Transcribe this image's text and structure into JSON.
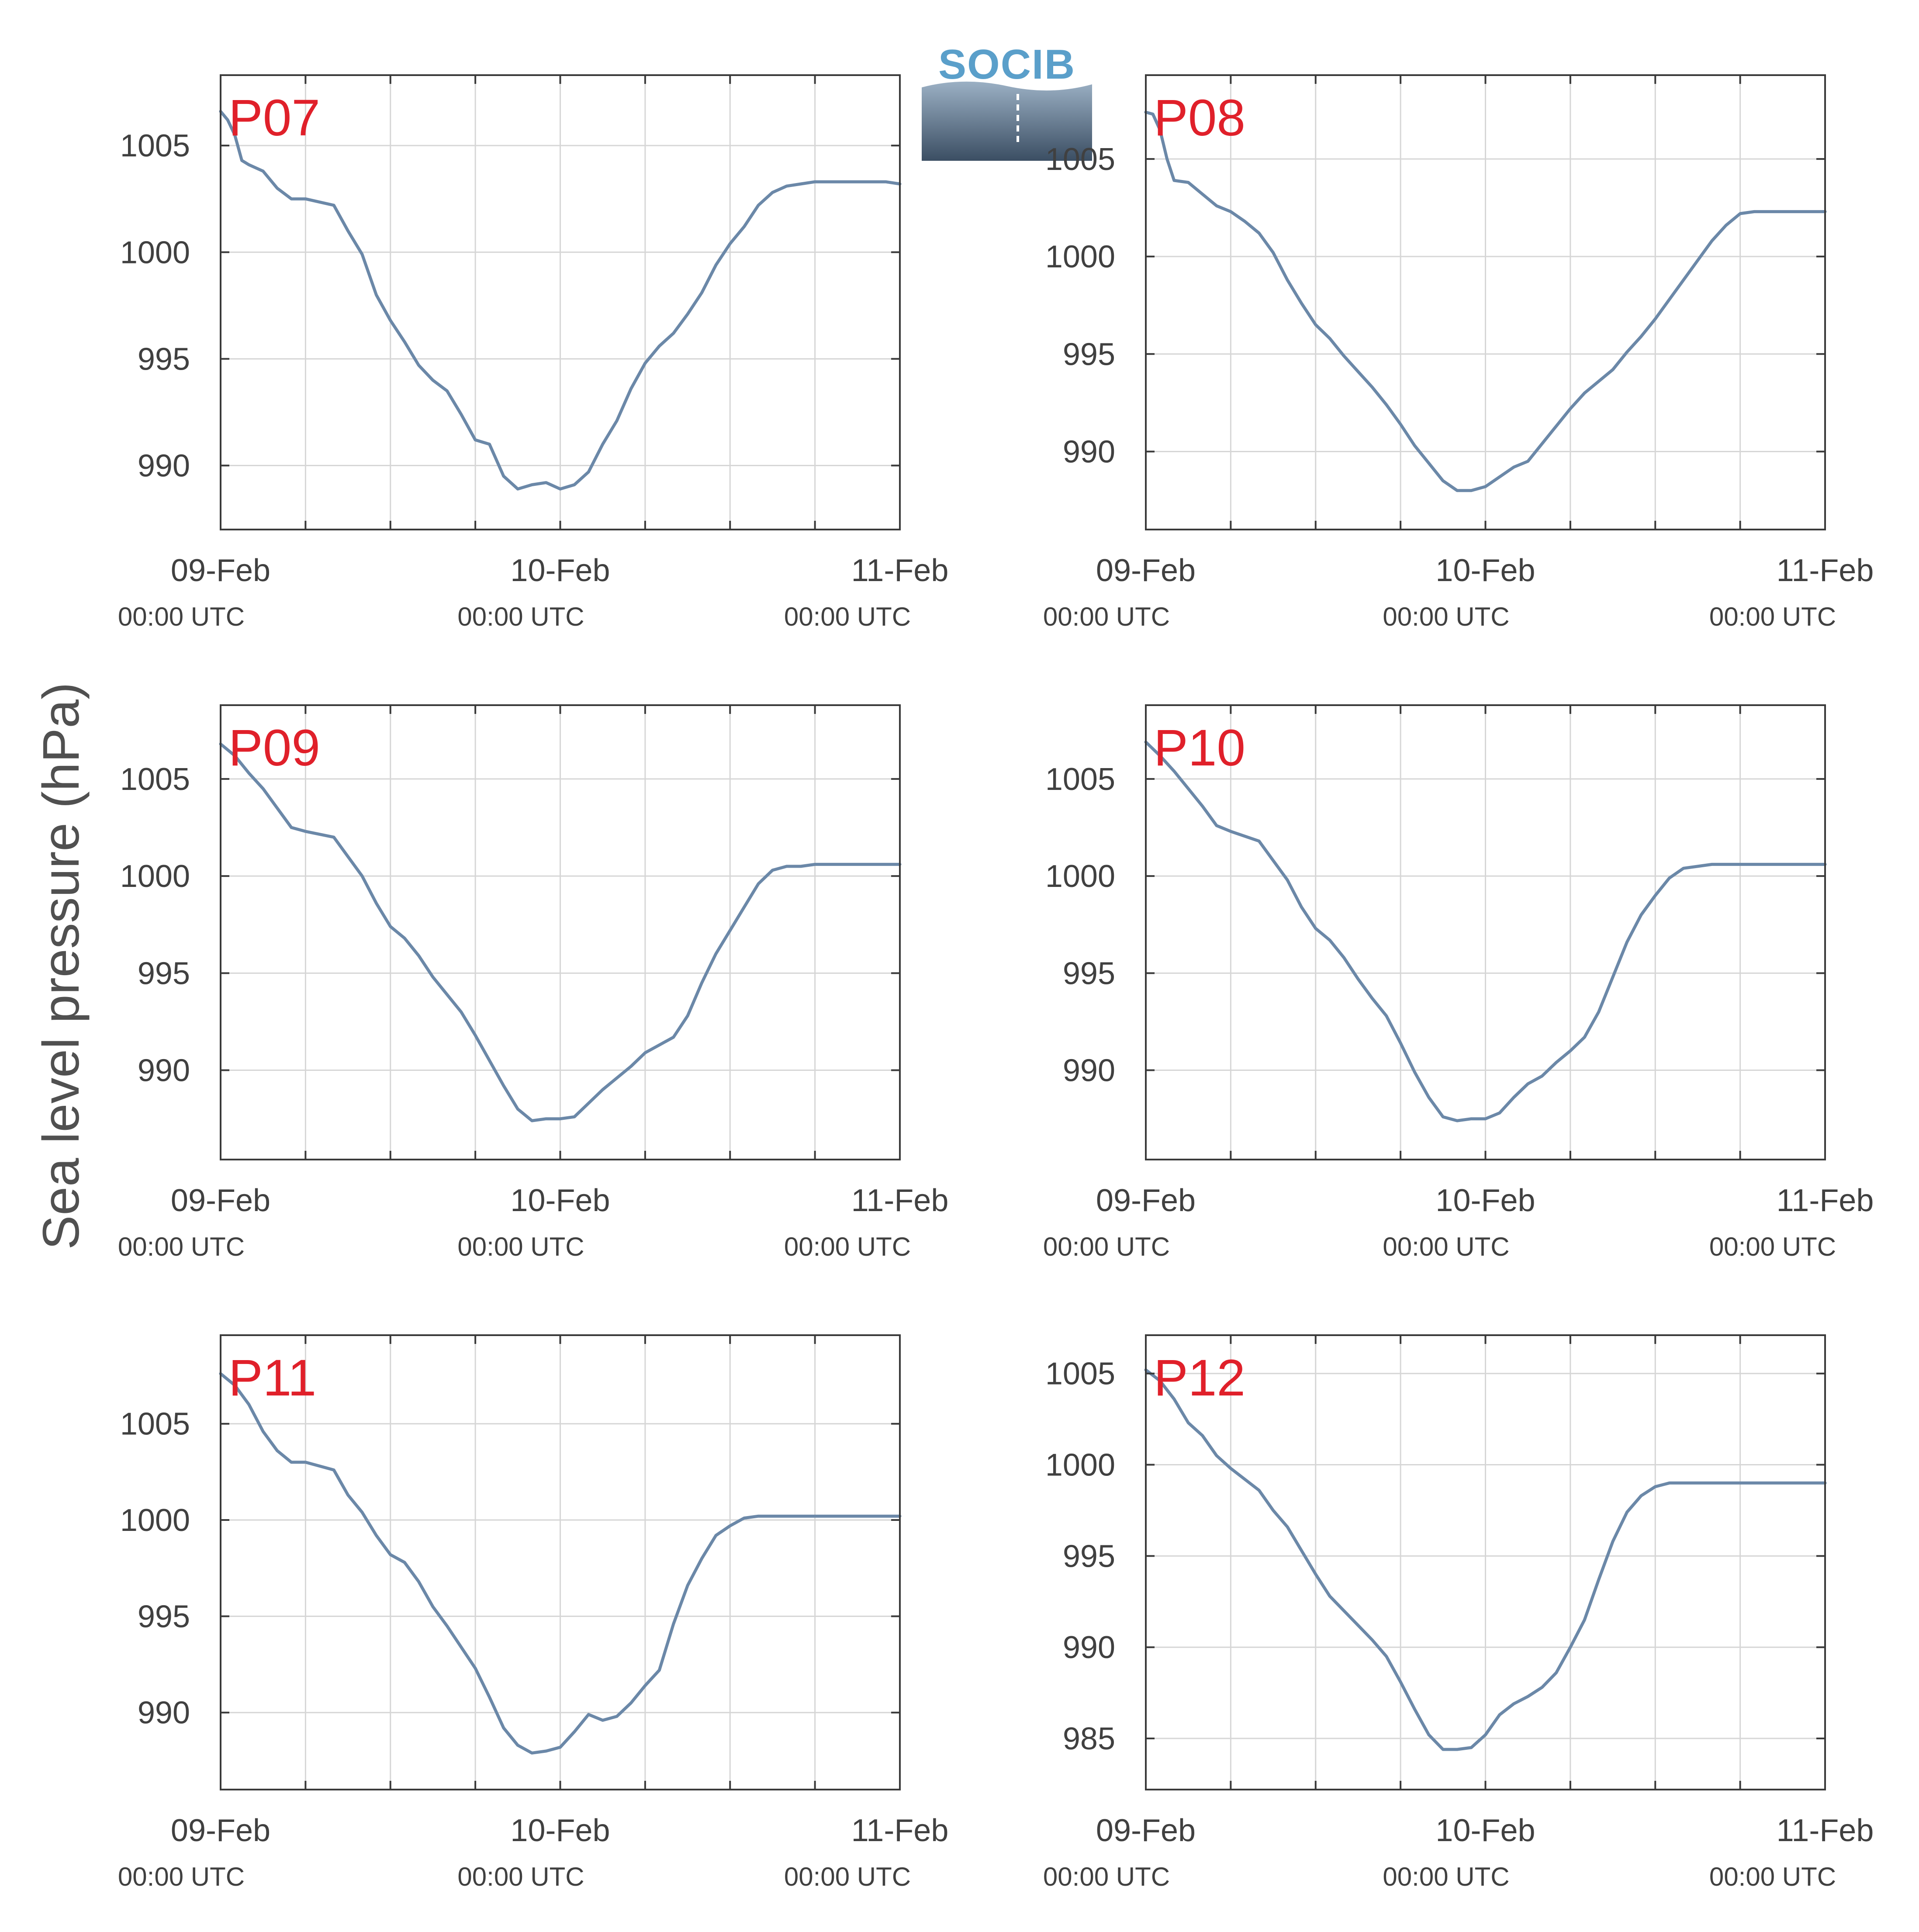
{
  "figure": {
    "ylabel": "Sea level pressure (hPa)",
    "logo_text": "SOCIB",
    "colors": {
      "line": "#6b88a8",
      "panel_label": "#e0202a",
      "logo_text": "#5a9fca",
      "grid": "#d6d6d6",
      "axis": "#3a3a3a"
    }
  },
  "chart_data": [
    {
      "type": "line",
      "panel_label": "P07",
      "xlim": [
        0,
        48
      ],
      "ylim": [
        987,
        1008.3
      ],
      "yticks": [
        990,
        995,
        1000,
        1005
      ],
      "xticks": [
        {
          "x": 0,
          "label": "09-Feb",
          "sublabel": "00:00 UTC"
        },
        {
          "x": 24,
          "label": "10-Feb",
          "sublabel": "00:00 UTC"
        },
        {
          "x": 48,
          "label": "11-Feb",
          "sublabel": "00:00 UTC"
        }
      ],
      "x": [
        0,
        0.5,
        1,
        1.5,
        2,
        3,
        4,
        5,
        6,
        8,
        9,
        10,
        11,
        12,
        13,
        14,
        15,
        16,
        17,
        18,
        19,
        20,
        21,
        22,
        23,
        24,
        25,
        26,
        27,
        28,
        29,
        30,
        31,
        32,
        33,
        34,
        35,
        36,
        37,
        38,
        39,
        40,
        41,
        42,
        43,
        44,
        45,
        46,
        47,
        48
      ],
      "y": [
        1006.6,
        1006.2,
        1005.5,
        1004.3,
        1004.1,
        1003.8,
        1003.0,
        1002.5,
        1002.5,
        1002.2,
        1001.0,
        999.9,
        998.0,
        996.8,
        995.8,
        994.7,
        994.0,
        993.5,
        992.4,
        991.2,
        991.0,
        989.5,
        988.9,
        989.1,
        989.2,
        988.9,
        989.1,
        989.7,
        991.0,
        992.1,
        993.6,
        994.8,
        995.6,
        996.2,
        997.1,
        998.1,
        999.4,
        1000.4,
        1001.2,
        1002.2,
        1002.8,
        1003.1,
        1003.2,
        1003.3,
        1003.3,
        1003.3,
        1003.3,
        1003.3,
        1003.3,
        1003.2
      ]
    },
    {
      "type": "line",
      "panel_label": "P08",
      "xlim": [
        0,
        48
      ],
      "ylim": [
        986,
        1009.3
      ],
      "yticks": [
        990,
        995,
        1000,
        1005
      ],
      "xticks": [
        {
          "x": 0,
          "label": "09-Feb",
          "sublabel": "00:00 UTC"
        },
        {
          "x": 24,
          "label": "10-Feb",
          "sublabel": "00:00 UTC"
        },
        {
          "x": 48,
          "label": "11-Feb",
          "sublabel": "00:00 UTC"
        }
      ],
      "x": [
        0,
        0.5,
        1,
        1.5,
        2,
        3,
        4,
        5,
        6,
        7,
        8,
        9,
        10,
        11,
        12,
        13,
        14,
        15,
        16,
        17,
        18,
        19,
        20,
        21,
        22,
        23,
        24,
        25,
        26,
        27,
        28,
        29,
        30,
        31,
        32,
        33,
        34,
        35,
        36,
        37,
        38,
        39,
        40,
        41,
        42,
        43,
        44,
        45,
        46,
        47,
        48
      ],
      "y": [
        1007.4,
        1007.3,
        1006.5,
        1005.0,
        1003.9,
        1003.8,
        1003.2,
        1002.6,
        1002.3,
        1001.8,
        1001.2,
        1000.2,
        998.8,
        997.6,
        996.5,
        995.8,
        994.9,
        994.1,
        993.3,
        992.4,
        991.4,
        990.3,
        989.4,
        988.5,
        988.0,
        988.0,
        988.2,
        988.7,
        989.2,
        989.5,
        990.4,
        991.3,
        992.2,
        993.0,
        993.6,
        994.2,
        995.1,
        995.9,
        996.8,
        997.8,
        998.8,
        999.8,
        1000.8,
        1001.6,
        1002.2,
        1002.3,
        1002.3,
        1002.3,
        1002.3,
        1002.3,
        1002.3
      ]
    },
    {
      "type": "line",
      "panel_label": "P09",
      "xlim": [
        0,
        48
      ],
      "ylim": [
        985.4,
        1008.8
      ],
      "yticks": [
        990,
        995,
        1000,
        1005
      ],
      "xticks": [
        {
          "x": 0,
          "label": "09-Feb",
          "sublabel": "00:00 UTC"
        },
        {
          "x": 24,
          "label": "10-Feb",
          "sublabel": "00:00 UTC"
        },
        {
          "x": 48,
          "label": "11-Feb",
          "sublabel": "00:00 UTC"
        }
      ],
      "x": [
        0,
        1,
        2,
        3,
        4,
        5,
        6,
        8,
        9,
        10,
        11,
        12,
        13,
        14,
        15,
        16,
        17,
        18,
        19,
        20,
        21,
        22,
        23,
        24,
        25,
        26,
        27,
        28,
        29,
        30,
        31,
        32,
        33,
        34,
        35,
        36,
        37,
        38,
        39,
        40,
        41,
        42,
        43,
        44,
        45,
        46,
        47,
        48
      ],
      "y": [
        1006.8,
        1006.2,
        1005.3,
        1004.5,
        1003.5,
        1002.5,
        1002.3,
        1002.0,
        1001.0,
        1000.0,
        998.6,
        997.4,
        996.8,
        995.9,
        994.8,
        993.9,
        993.0,
        991.8,
        990.5,
        989.2,
        988.0,
        987.4,
        987.5,
        987.5,
        987.6,
        988.3,
        989.0,
        989.6,
        990.2,
        990.9,
        991.3,
        991.7,
        992.8,
        994.5,
        996.0,
        997.2,
        998.4,
        999.6,
        1000.3,
        1000.5,
        1000.5,
        1000.6,
        1000.6,
        1000.6,
        1000.6,
        1000.6,
        1000.6,
        1000.6
      ]
    },
    {
      "type": "line",
      "panel_label": "P10",
      "xlim": [
        0,
        48
      ],
      "ylim": [
        985.4,
        1008.8
      ],
      "yticks": [
        990,
        995,
        1000,
        1005
      ],
      "xticks": [
        {
          "x": 0,
          "label": "09-Feb",
          "sublabel": "00:00 UTC"
        },
        {
          "x": 24,
          "label": "10-Feb",
          "sublabel": "00:00 UTC"
        },
        {
          "x": 48,
          "label": "11-Feb",
          "sublabel": "00:00 UTC"
        }
      ],
      "x": [
        0,
        1,
        2,
        3,
        4,
        5,
        6,
        8,
        9,
        10,
        11,
        12,
        13,
        14,
        15,
        16,
        17,
        18,
        19,
        20,
        21,
        22,
        23,
        24,
        25,
        26,
        27,
        28,
        29,
        30,
        31,
        32,
        33,
        34,
        35,
        36,
        37,
        38,
        39,
        40,
        41,
        42,
        43,
        44,
        45,
        46,
        47,
        48
      ],
      "y": [
        1006.9,
        1006.2,
        1005.4,
        1004.5,
        1003.6,
        1002.6,
        1002.3,
        1001.8,
        1000.8,
        999.8,
        998.4,
        997.3,
        996.7,
        995.8,
        994.7,
        993.7,
        992.8,
        991.4,
        989.9,
        988.6,
        987.6,
        987.4,
        987.5,
        987.5,
        987.8,
        988.6,
        989.3,
        989.7,
        990.4,
        991.0,
        991.7,
        993.0,
        994.8,
        996.6,
        998.0,
        999.0,
        999.9,
        1000.4,
        1000.5,
        1000.6,
        1000.6,
        1000.6,
        1000.6,
        1000.6,
        1000.6,
        1000.6,
        1000.6,
        1000.6
      ]
    },
    {
      "type": "line",
      "panel_label": "P11",
      "xlim": [
        0,
        48
      ],
      "ylim": [
        986,
        1009.6
      ],
      "yticks": [
        990,
        995,
        1000,
        1005
      ],
      "xticks": [
        {
          "x": 0,
          "label": "09-Feb",
          "sublabel": "00:00 UTC"
        },
        {
          "x": 24,
          "label": "10-Feb",
          "sublabel": "00:00 UTC"
        },
        {
          "x": 48,
          "label": "11-Feb",
          "sublabel": "00:00 UTC"
        }
      ],
      "x": [
        0,
        1,
        2,
        3,
        4,
        5,
        6,
        8,
        9,
        10,
        11,
        12,
        13,
        14,
        15,
        16,
        17,
        18,
        19,
        20,
        21,
        22,
        23,
        24,
        25,
        26,
        27,
        28,
        29,
        30,
        31,
        32,
        33,
        34,
        35,
        36,
        37,
        38,
        39,
        40,
        41,
        42,
        43,
        44,
        45,
        46,
        47,
        48
      ],
      "y": [
        1007.6,
        1007.0,
        1006.0,
        1004.6,
        1003.6,
        1003.0,
        1003.0,
        1002.6,
        1001.3,
        1000.4,
        999.2,
        998.2,
        997.8,
        996.8,
        995.5,
        994.5,
        993.4,
        992.3,
        990.8,
        989.2,
        988.3,
        987.9,
        988.0,
        988.2,
        989.0,
        989.9,
        989.6,
        989.8,
        990.5,
        991.4,
        992.2,
        994.6,
        996.6,
        998.0,
        999.2,
        999.7,
        1000.1,
        1000.2,
        1000.2,
        1000.2,
        1000.2,
        1000.2,
        1000.2,
        1000.2,
        1000.2,
        1000.2,
        1000.2,
        1000.2
      ]
    },
    {
      "type": "line",
      "panel_label": "P12",
      "xlim": [
        0,
        48
      ],
      "ylim": [
        982.2,
        1007.1
      ],
      "yticks": [
        985,
        990,
        995,
        1000,
        1005
      ],
      "xticks": [
        {
          "x": 0,
          "label": "09-Feb",
          "sublabel": "00:00 UTC"
        },
        {
          "x": 24,
          "label": "10-Feb",
          "sublabel": "00:00 UTC"
        },
        {
          "x": 48,
          "label": "11-Feb",
          "sublabel": "00:00 UTC"
        }
      ],
      "x": [
        0,
        1,
        2,
        3,
        4,
        5,
        6,
        8,
        9,
        10,
        11,
        12,
        13,
        14,
        15,
        16,
        17,
        18,
        19,
        20,
        21,
        22,
        23,
        24,
        25,
        26,
        27,
        28,
        29,
        30,
        31,
        32,
        33,
        34,
        35,
        36,
        37,
        38,
        39,
        40,
        41,
        42,
        43,
        44,
        45,
        46,
        47,
        48
      ],
      "y": [
        1005.2,
        1004.6,
        1003.6,
        1002.3,
        1001.6,
        1000.5,
        999.8,
        998.6,
        997.5,
        996.6,
        995.3,
        994.0,
        992.8,
        992.0,
        991.2,
        990.4,
        989.5,
        988.1,
        986.6,
        985.2,
        984.4,
        984.4,
        984.5,
        985.2,
        986.3,
        986.9,
        987.3,
        987.8,
        988.6,
        990.0,
        991.5,
        993.7,
        995.8,
        997.4,
        998.3,
        998.8,
        999.0,
        999.0,
        999.0,
        999.0,
        999.0,
        999.0,
        999.0,
        999.0,
        999.0,
        999.0,
        999.0,
        999.0
      ]
    }
  ]
}
